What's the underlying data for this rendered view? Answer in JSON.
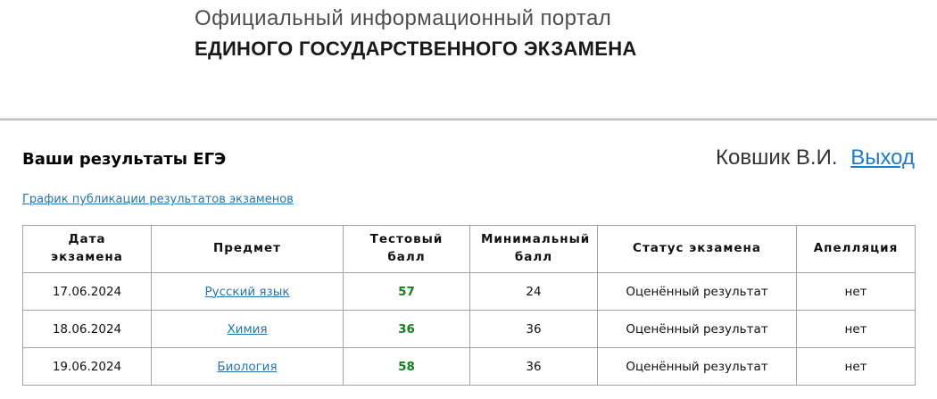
{
  "header": {
    "line1": "Официальный информационный портал",
    "line2": "ЕДИНОГО ГОСУДАРСТВЕННОГО ЭКЗАМЕНА"
  },
  "user": {
    "name": "Ковшик В.И.",
    "logout_label": "Выход"
  },
  "main": {
    "title": "Ваши результаты ЕГЭ",
    "schedule_link_label": "График публикации результатов экзаменов"
  },
  "table": {
    "columns": [
      "Дата экзамена",
      "Предмет",
      "Тестовый балл",
      "Минимальный балл",
      "Статус экзамена",
      "Апелляция"
    ],
    "rows": [
      {
        "date": "17.06.2024",
        "subject": "Русский язык",
        "test_score": "57",
        "min_score": "24",
        "status": "Оценённый результат",
        "appeal": "нет"
      },
      {
        "date": "18.06.2024",
        "subject": "Химия",
        "test_score": "36",
        "min_score": "36",
        "status": "Оценённый результат",
        "appeal": "нет"
      },
      {
        "date": "19.06.2024",
        "subject": "Биология",
        "test_score": "58",
        "min_score": "36",
        "status": "Оценённый результат",
        "appeal": "нет"
      }
    ]
  },
  "colors": {
    "link_blue": "#2674ab",
    "logout_blue": "#1e7cc8",
    "score_green": "#17801c",
    "table_border": "#a3a3a3",
    "divider_gray": "#b5b5b5",
    "subtitle_gray": "#4e4e4e"
  }
}
